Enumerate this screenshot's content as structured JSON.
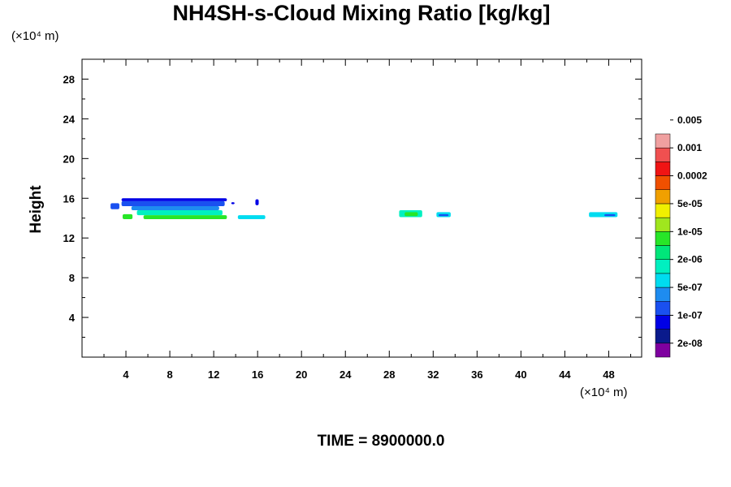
{
  "chart_data": {
    "type": "heatmap",
    "title": "NH4SH-s-Cloud Mixing Ratio [kg/kg]",
    "xlabel": "",
    "ylabel": "Height",
    "x_unit": "(×10⁴ m)",
    "y_unit": "(×10⁴ m)",
    "xlim": [
      0,
      51
    ],
    "ylim": [
      0,
      30
    ],
    "x_ticks": [
      4,
      8,
      12,
      16,
      20,
      24,
      28,
      32,
      36,
      40,
      44,
      48
    ],
    "y_ticks": [
      4,
      8,
      12,
      16,
      20,
      24,
      28
    ],
    "time_label": "TIME = 8900000.0",
    "colorbar": {
      "levels": [
        "2e-08",
        "1e-07",
        "5e-07",
        "2e-06",
        "1e-05",
        "5e-05",
        "0.0002",
        "0.001",
        "0.005"
      ],
      "colors": [
        "#7f00a0",
        "#0a1a8c",
        "#0000e6",
        "#1a50f0",
        "#1e8cf0",
        "#00dcf0",
        "#00f0c0",
        "#00e67a",
        "#28e628",
        "#a0e61e",
        "#f0f000",
        "#f0a000",
        "#f05000",
        "#f01414",
        "#f05050",
        "#f0a0a0"
      ]
    },
    "cloud_regions": [
      {
        "name": "left-cluster",
        "x": [
          2.6,
          16.7
        ],
        "y": [
          13.9,
          16.0
        ],
        "max_level": "1e-05"
      },
      {
        "name": "middle-cluster",
        "x": [
          28.9,
          31.0
        ],
        "y": [
          14.1,
          14.8
        ],
        "max_level": "1e-05"
      },
      {
        "name": "middle-small",
        "x": [
          32.3,
          33.6
        ],
        "y": [
          14.1,
          14.6
        ],
        "max_level": "5e-07"
      },
      {
        "name": "right-cluster",
        "x": [
          46.2,
          48.8
        ],
        "y": [
          14.1,
          14.6
        ],
        "max_level": "5e-07"
      }
    ]
  }
}
